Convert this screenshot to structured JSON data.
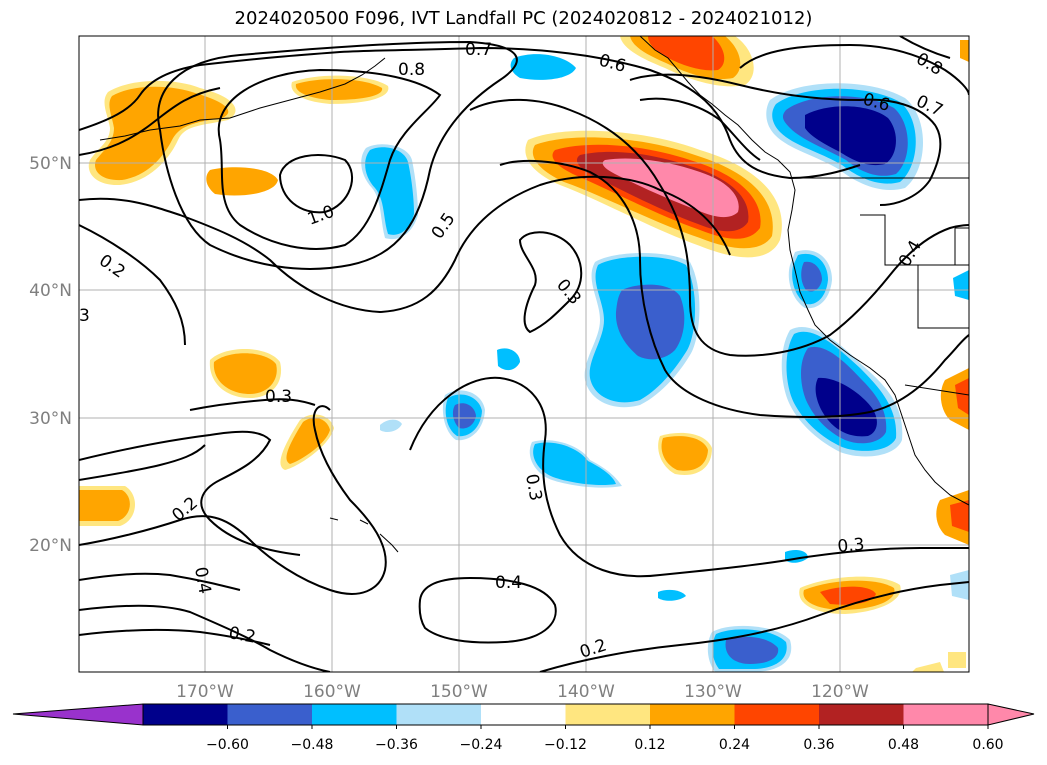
{
  "title": "2024020500 F096, IVT Landfall PC (2024020812 - 2024021012)",
  "colors": {
    "neg_extend": "#9932cc",
    "positive_palette": [
      "#ffe680",
      "#ffa500",
      "#ff4500",
      "#b22222",
      "#ff88aa"
    ],
    "negative_palette": [
      "#00008b",
      "#3a5fcd",
      "#00bfff",
      "#b0e0f8"
    ]
  },
  "map": {
    "lon_labels": [
      "170°W",
      "160°W",
      "150°W",
      "140°W",
      "130°W",
      "120°W"
    ],
    "lat_labels": [
      "50°N",
      "40°N",
      "30°N",
      "20°N"
    ],
    "contour_labels": [
      {
        "text": "0.7"
      },
      {
        "text": "0.6"
      },
      {
        "text": "0.8"
      },
      {
        "text": "0.6"
      },
      {
        "text": "0.7"
      },
      {
        "text": "0.8"
      },
      {
        "text": "1.0"
      },
      {
        "text": "0.5"
      },
      {
        "text": "0.2"
      },
      {
        "text": "3"
      },
      {
        "text": "0.3"
      },
      {
        "text": "0.4"
      },
      {
        "text": "0.3"
      },
      {
        "text": "0.2"
      },
      {
        "text": "0.3"
      },
      {
        "text": "0.4"
      },
      {
        "text": "0.4"
      },
      {
        "text": "0.2"
      },
      {
        "text": "0.2"
      },
      {
        "text": "0.3"
      }
    ]
  },
  "colorbar": {
    "ticks": [
      "−0.60",
      "−0.48",
      "−0.36",
      "−0.24",
      "−0.12",
      "0.12",
      "0.24",
      "0.36",
      "0.48",
      "0.60"
    ],
    "bins": [
      {
        "color": "#00008b"
      },
      {
        "color": "#3a5fcd"
      },
      {
        "color": "#00bfff"
      },
      {
        "color": "#b0e0f8"
      },
      {
        "color": "#ffffff"
      },
      {
        "color": "#ffe680"
      },
      {
        "color": "#ffa500"
      },
      {
        "color": "#ff4500"
      },
      {
        "color": "#b22222"
      },
      {
        "color": "#ff88aa"
      }
    ],
    "low_extend_color": "#9932cc",
    "high_extend_color": "#ff88aa"
  }
}
